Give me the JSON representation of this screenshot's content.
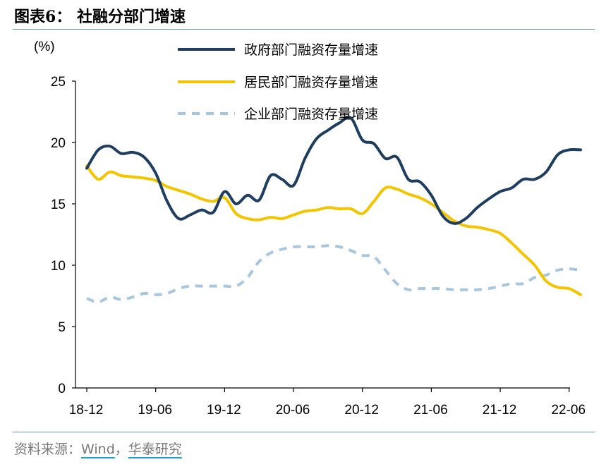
{
  "header": {
    "title": "图表6：  社融分部门增速"
  },
  "footer": {
    "prefix": "资料来源：",
    "wind": "Wind",
    "comma": "，",
    "huatai": "华泰研究"
  },
  "chart_data": {
    "type": "line",
    "ylabel": "(%)",
    "ylim": [
      0,
      25
    ],
    "yticks": [
      "0",
      "5",
      "10",
      "15",
      "20",
      "25"
    ],
    "xticks": [
      "18-12",
      "19-06",
      "19-12",
      "20-06",
      "20-12",
      "21-06",
      "21-12",
      "22-06"
    ],
    "x": [
      "18-12",
      "19-01",
      "19-02",
      "19-03",
      "19-04",
      "19-05",
      "19-06",
      "19-07",
      "19-08",
      "19-09",
      "19-10",
      "19-11",
      "19-12",
      "20-01",
      "20-02",
      "20-03",
      "20-04",
      "20-05",
      "20-06",
      "20-07",
      "20-08",
      "20-09",
      "20-10",
      "20-11",
      "20-12",
      "21-01",
      "21-02",
      "21-03",
      "21-04",
      "21-05",
      "21-06",
      "21-07",
      "21-08",
      "21-09",
      "21-10",
      "21-11",
      "21-12",
      "22-01",
      "22-02",
      "22-03",
      "22-04",
      "22-05",
      "22-06",
      "22-07"
    ],
    "legend": "top-center",
    "series": [
      {
        "name": "政府部门融资存量增速",
        "color": "#1f3d5e",
        "dash": "solid",
        "values": [
          17.9,
          19.4,
          19.7,
          19.1,
          19.2,
          18.8,
          17.5,
          15.2,
          13.8,
          14.1,
          14.5,
          14.3,
          16.0,
          15.0,
          15.7,
          15.3,
          17.3,
          17.0,
          16.5,
          18.7,
          20.3,
          21.0,
          21.6,
          22.0,
          20.2,
          19.9,
          18.7,
          18.8,
          17.0,
          16.8,
          15.7,
          14.0,
          13.4,
          13.8,
          14.7,
          15.4,
          16.0,
          16.3,
          17.0,
          17.0,
          17.6,
          19.0,
          19.4,
          19.4
        ]
      },
      {
        "name": "居民部门融资存量增速",
        "color": "#f2c500",
        "dash": "solid",
        "values": [
          18.1,
          17.0,
          17.6,
          17.3,
          17.2,
          17.1,
          16.9,
          16.4,
          16.1,
          15.8,
          15.4,
          15.2,
          15.5,
          14.2,
          13.8,
          13.7,
          13.9,
          13.8,
          14.1,
          14.4,
          14.5,
          14.7,
          14.6,
          14.6,
          14.2,
          15.2,
          16.3,
          16.2,
          15.8,
          15.5,
          15.0,
          14.3,
          13.6,
          13.2,
          13.1,
          12.9,
          12.6,
          11.8,
          10.9,
          10.0,
          8.7,
          8.2,
          8.1,
          7.6
        ]
      },
      {
        "name": "企业部门融资存量增速",
        "color": "#a9c6df",
        "dash": "dashed",
        "values": [
          7.3,
          7.0,
          7.4,
          7.2,
          7.4,
          7.7,
          7.6,
          7.7,
          8.1,
          8.3,
          8.3,
          8.3,
          8.3,
          8.3,
          9.0,
          10.3,
          11.0,
          11.3,
          11.5,
          11.5,
          11.5,
          11.6,
          11.5,
          11.2,
          10.8,
          10.7,
          9.6,
          8.5,
          8.0,
          8.1,
          8.1,
          8.1,
          8.0,
          8.0,
          8.0,
          8.1,
          8.3,
          8.5,
          8.5,
          9.0,
          9.2,
          9.6,
          9.7,
          9.6
        ]
      }
    ]
  }
}
